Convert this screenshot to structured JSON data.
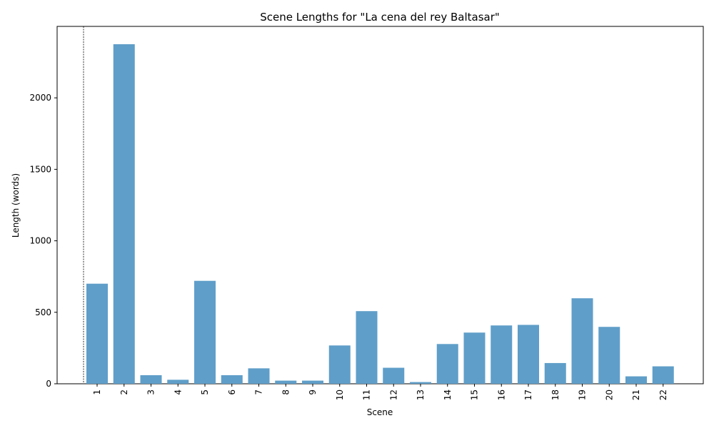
{
  "chart_data": {
    "type": "bar",
    "title": "Scene Lengths for \"La cena del rey Baltasar\"",
    "xlabel": "Scene",
    "ylabel": "Length (words)",
    "categories": [
      "1",
      "2",
      "3",
      "4",
      "5",
      "6",
      "7",
      "8",
      "9",
      "10",
      "11",
      "12",
      "13",
      "14",
      "15",
      "16",
      "17",
      "18",
      "19",
      "20",
      "21",
      "22"
    ],
    "values": [
      700,
      2375,
      60,
      28,
      720,
      60,
      108,
      22,
      22,
      268,
      508,
      112,
      12,
      278,
      358,
      408,
      412,
      145,
      598,
      398,
      52,
      122
    ],
    "yticks": [
      0,
      500,
      1000,
      1500,
      2000
    ],
    "ylim": [
      0,
      2500
    ],
    "grid": false,
    "bar_color": "#5f9ec9",
    "marker_line": {
      "at_position": "before first bar",
      "style": "dashed",
      "color": "#000000"
    }
  }
}
